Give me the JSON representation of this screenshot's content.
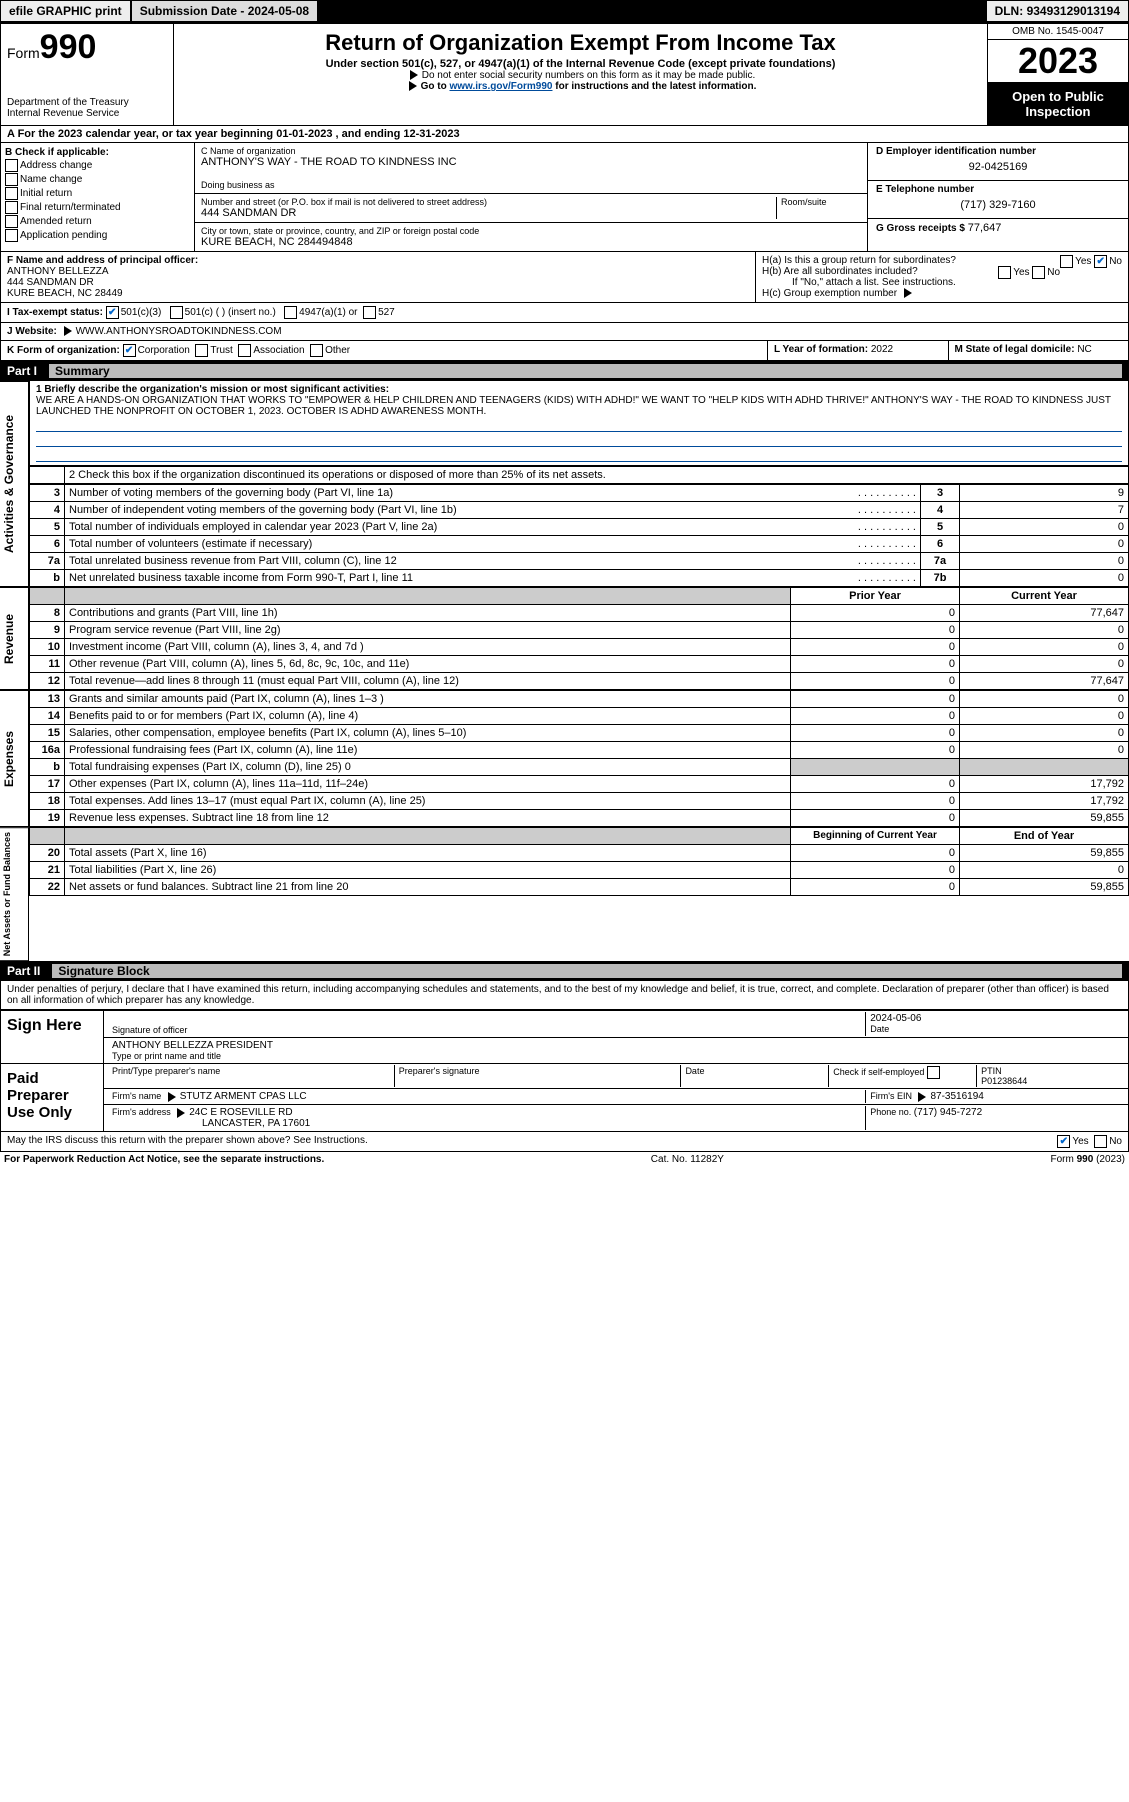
{
  "topbar": {
    "efile": "efile GRAPHIC print",
    "subdate_label": "Submission Date - ",
    "subdate": "2024-05-08",
    "dln_label": "DLN: ",
    "dln": "93493129013194"
  },
  "header": {
    "form_word": "Form",
    "form_num": "990",
    "dept": "Department of the Treasury",
    "irs": "Internal Revenue Service",
    "title": "Return of Organization Exempt From Income Tax",
    "sub1": "Under section 501(c), 527, or 4947(a)(1) of the Internal Revenue Code (except private foundations)",
    "sub2": "Do not enter social security numbers on this form as it may be made public.",
    "sub3_pre": "Go to ",
    "sub3_link": "www.irs.gov/Form990",
    "sub3_post": " for instructions and the latest information.",
    "omb": "OMB No. 1545-0047",
    "year": "2023",
    "inspect": "Open to Public Inspection"
  },
  "rowA": {
    "text_pre": "A For the 2023 calendar year, or tax year beginning ",
    "begin": "01-01-2023",
    "mid": " , and ending ",
    "end": "12-31-2023"
  },
  "colB": {
    "label": "B Check if applicable:",
    "items": [
      "Address change",
      "Name change",
      "Initial return",
      "Final return/terminated",
      "Amended return",
      "Application pending"
    ]
  },
  "colC": {
    "name_label": "C Name of organization",
    "name": "ANTHONY'S WAY - THE ROAD TO KINDNESS INC",
    "dba_label": "Doing business as",
    "dba": "",
    "street_label": "Number and street (or P.O. box if mail is not delivered to street address)",
    "room_label": "Room/suite",
    "street": "444 SANDMAN DR",
    "city_label": "City or town, state or province, country, and ZIP or foreign postal code",
    "city": "KURE BEACH, NC  284494848"
  },
  "colD": {
    "ein_label": "D Employer identification number",
    "ein": "92-0425169",
    "phone_label": "E Telephone number",
    "phone": "(717) 329-7160",
    "gross_label": "G Gross receipts $ ",
    "gross": "77,647"
  },
  "rowF": {
    "label": "F  Name and address of principal officer:",
    "name": "ANTHONY BELLEZZA",
    "street": "444 SANDMAN DR",
    "city": "KURE BEACH, NC  28449"
  },
  "rowH": {
    "ha": "H(a)  Is this a group return for subordinates?",
    "hb": "H(b)  Are all subordinates included?",
    "hb_note": "If \"No,\" attach a list. See instructions.",
    "hc": "H(c)  Group exemption number ",
    "yes": "Yes",
    "no": "No"
  },
  "rowI": {
    "label": "I   Tax-exempt status:",
    "o1": "501(c)(3)",
    "o2": "501(c) (  ) (insert no.)",
    "o3": "4947(a)(1) or",
    "o4": "527"
  },
  "rowJ": {
    "label": "J   Website: ",
    "val": "WWW.ANTHONYSROADTOKINDNESS.COM"
  },
  "rowK": {
    "label": "K Form of organization:",
    "o1": "Corporation",
    "o2": "Trust",
    "o3": "Association",
    "o4": "Other"
  },
  "rowL": {
    "label": "L Year of formation: ",
    "val": "2022"
  },
  "rowM": {
    "label": "M State of legal domicile: ",
    "val": "NC"
  },
  "part1": {
    "label": "Part I",
    "title": "Summary"
  },
  "summary": {
    "l1_label": "1   Briefly describe the organization's mission or most significant activities:",
    "l1_text": "WE ARE A HANDS-ON ORGANIZATION THAT WORKS TO \"EMPOWER & HELP CHILDREN AND TEENAGERS (KIDS) WITH ADHD!\" WE WANT TO \"HELP KIDS WITH ADHD THRIVE!\" ANTHONY'S WAY - THE ROAD TO KINDNESS JUST LAUNCHED THE NONPROFIT ON OCTOBER 1, 2023. OCTOBER IS ADHD AWARENESS MONTH.",
    "l2": "2   Check this box    if the organization discontinued its operations or disposed of more than 25% of its net assets.",
    "lines_gov": [
      {
        "n": "3",
        "t": "Number of voting members of the governing body (Part VI, line 1a)",
        "box": "3",
        "v": "9"
      },
      {
        "n": "4",
        "t": "Number of independent voting members of the governing body (Part VI, line 1b)",
        "box": "4",
        "v": "7"
      },
      {
        "n": "5",
        "t": "Total number of individuals employed in calendar year 2023 (Part V, line 2a)",
        "box": "5",
        "v": "0"
      },
      {
        "n": "6",
        "t": "Total number of volunteers (estimate if necessary)",
        "box": "6",
        "v": "0"
      },
      {
        "n": "7a",
        "t": "Total unrelated business revenue from Part VIII, column (C), line 12",
        "box": "7a",
        "v": "0"
      },
      {
        "n": "b",
        "t": "Net unrelated business taxable income from Form 990-T, Part I, line 11",
        "box": "7b",
        "v": "0"
      }
    ],
    "hdr_prior": "Prior Year",
    "hdr_curr": "Current Year",
    "rev": [
      {
        "n": "8",
        "t": "Contributions and grants (Part VIII, line 1h)",
        "p": "0",
        "c": "77,647"
      },
      {
        "n": "9",
        "t": "Program service revenue (Part VIII, line 2g)",
        "p": "0",
        "c": "0"
      },
      {
        "n": "10",
        "t": "Investment income (Part VIII, column (A), lines 3, 4, and 7d )",
        "p": "0",
        "c": "0"
      },
      {
        "n": "11",
        "t": "Other revenue (Part VIII, column (A), lines 5, 6d, 8c, 9c, 10c, and 11e)",
        "p": "0",
        "c": "0"
      },
      {
        "n": "12",
        "t": "Total revenue—add lines 8 through 11 (must equal Part VIII, column (A), line 12)",
        "p": "0",
        "c": "77,647"
      }
    ],
    "exp": [
      {
        "n": "13",
        "t": "Grants and similar amounts paid (Part IX, column (A), lines 1–3 )",
        "p": "0",
        "c": "0"
      },
      {
        "n": "14",
        "t": "Benefits paid to or for members (Part IX, column (A), line 4)",
        "p": "0",
        "c": "0"
      },
      {
        "n": "15",
        "t": "Salaries, other compensation, employee benefits (Part IX, column (A), lines 5–10)",
        "p": "0",
        "c": "0"
      },
      {
        "n": "16a",
        "t": "Professional fundraising fees (Part IX, column (A), line 11e)",
        "p": "0",
        "c": "0"
      },
      {
        "n": "b",
        "t": "Total fundraising expenses (Part IX, column (D), line 25) 0",
        "p": "",
        "c": "",
        "shade": true
      },
      {
        "n": "17",
        "t": "Other expenses (Part IX, column (A), lines 11a–11d, 11f–24e)",
        "p": "0",
        "c": "17,792"
      },
      {
        "n": "18",
        "t": "Total expenses. Add lines 13–17 (must equal Part IX, column (A), line 25)",
        "p": "0",
        "c": "17,792"
      },
      {
        "n": "19",
        "t": "Revenue less expenses. Subtract line 18 from line 12",
        "p": "0",
        "c": "59,855"
      }
    ],
    "hdr_boy": "Beginning of Current Year",
    "hdr_eoy": "End of Year",
    "net": [
      {
        "n": "20",
        "t": "Total assets (Part X, line 16)",
        "p": "0",
        "c": "59,855"
      },
      {
        "n": "21",
        "t": "Total liabilities (Part X, line 26)",
        "p": "0",
        "c": "0"
      },
      {
        "n": "22",
        "t": "Net assets or fund balances. Subtract line 21 from line 20",
        "p": "0",
        "c": "59,855"
      }
    ],
    "side_gov": "Activities & Governance",
    "side_rev": "Revenue",
    "side_exp": "Expenses",
    "side_net": "Net Assets or Fund Balances"
  },
  "part2": {
    "label": "Part II",
    "title": "Signature Block"
  },
  "perjury": "Under penalties of perjury, I declare that I have examined this return, including accompanying schedules and statements, and to the best of my knowledge and belief, it is true, correct, and complete. Declaration of preparer (other than officer) is based on all information of which preparer has any knowledge.",
  "sign": {
    "here": "Sign Here",
    "sig_officer": "Signature of officer",
    "date_label": "Date",
    "date": "2024-05-06",
    "name_title": "ANTHONY BELLEZZA PRESIDENT",
    "name_label": "Type or print name and title"
  },
  "paid": {
    "label": "Paid Preparer Use Only",
    "h_name": "Print/Type preparer's name",
    "h_sig": "Preparer's signature",
    "h_date": "Date",
    "h_check": "Check         if self-employed",
    "h_ptin": "PTIN",
    "ptin": "P01238644",
    "firm_label": "Firm's name   ",
    "firm": "STUTZ ARMENT CPAS LLC",
    "ein_label": "Firm's EIN ",
    "ein": "87-3516194",
    "addr_label": "Firm's address ",
    "addr1": "24C E ROSEVILLE RD",
    "addr2": "LANCASTER, PA  17601",
    "phone_label": "Phone no. ",
    "phone": "(717) 945-7272"
  },
  "discuss": {
    "text": "May the IRS discuss this return with the preparer shown above? See Instructions.",
    "yes": "Yes",
    "no": "No"
  },
  "footer": {
    "left": "For Paperwork Reduction Act Notice, see the separate instructions.",
    "mid": "Cat. No. 11282Y",
    "right": "Form 990 (2023)"
  },
  "colors": {
    "link": "#004b9b",
    "check": "#0066cc"
  }
}
